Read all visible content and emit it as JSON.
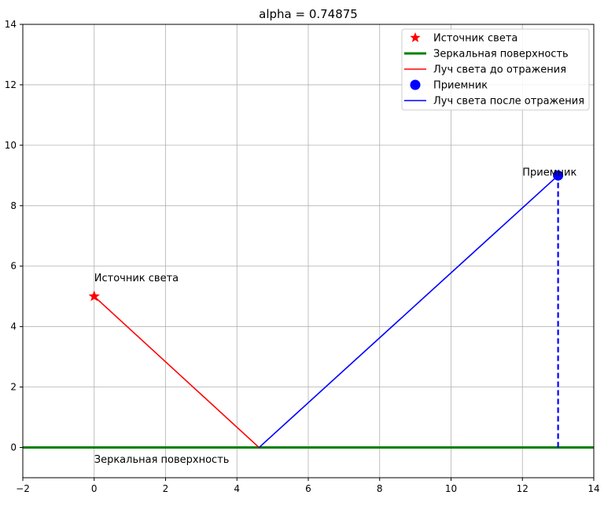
{
  "chart_data": {
    "type": "line",
    "title": "alpha = 0.74875",
    "xlabel": "",
    "ylabel": "",
    "xlim": [
      -2,
      14
    ],
    "ylim": [
      -1,
      14
    ],
    "xticks": [
      -2,
      0,
      2,
      4,
      6,
      8,
      10,
      12,
      14
    ],
    "yticks": [
      0,
      2,
      4,
      6,
      8,
      10,
      12,
      14
    ],
    "grid": true,
    "legend_position": "top-right",
    "series": [
      {
        "name": "Источник света",
        "kind": "marker",
        "marker": "star",
        "color": "#ff0000",
        "x": [
          0
        ],
        "y": [
          5
        ]
      },
      {
        "name": "Зеркальная поверхность",
        "kind": "hline",
        "color": "#008000",
        "y": 0
      },
      {
        "name": "Луч света до отражения",
        "kind": "line",
        "color": "#ff0000",
        "x": [
          0,
          4.62
        ],
        "y": [
          5,
          0
        ]
      },
      {
        "name": "Приемник",
        "kind": "marker",
        "marker": "circle",
        "color": "#0000ff",
        "x": [
          13
        ],
        "y": [
          9
        ]
      },
      {
        "name": "Луч света после отражения",
        "kind": "line",
        "color": "#0000ff",
        "x": [
          4.62,
          13
        ],
        "y": [
          0,
          9
        ]
      }
    ],
    "dashed_line": {
      "color": "#0000ff",
      "x": [
        13,
        13
      ],
      "y": [
        0,
        9
      ]
    },
    "annotations": [
      {
        "text": "Источник света",
        "x": 0,
        "y": 5.5
      },
      {
        "text": "Приемник",
        "x": 12,
        "y": 9
      },
      {
        "text": "Зеркальная поверхность",
        "x": 0,
        "y": -0.5
      }
    ]
  }
}
